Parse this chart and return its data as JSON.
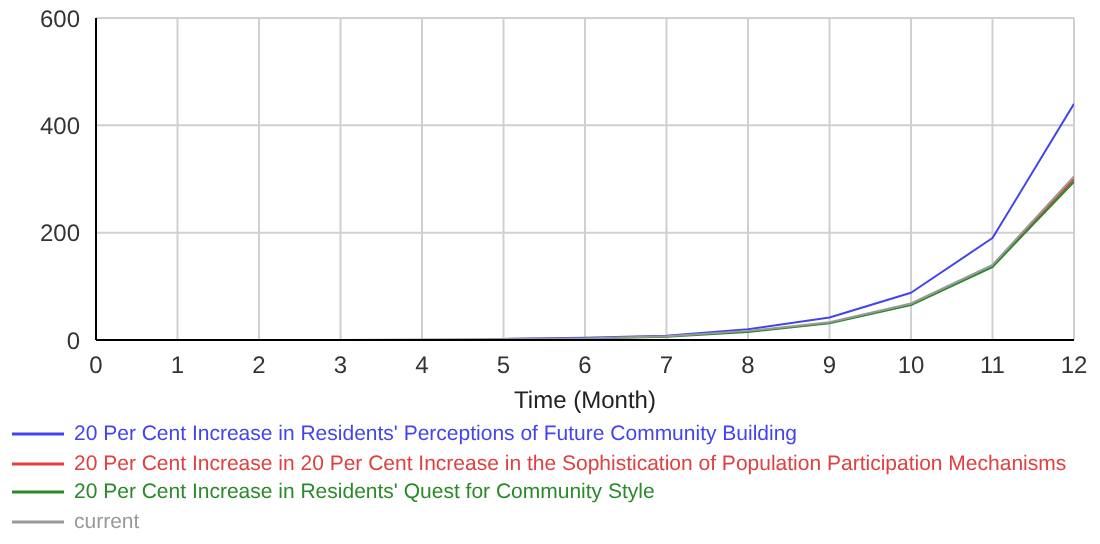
{
  "chart_data": {
    "type": "line",
    "xlabel": "Time (Month)",
    "x": [
      0,
      1,
      2,
      3,
      4,
      5,
      6,
      7,
      8,
      9,
      10,
      11,
      12
    ],
    "series": [
      {
        "name": "20 Per Cent Increase in Residents' Perceptions of Future Community Building",
        "color": "#4444ee",
        "values": [
          null,
          null,
          null,
          null,
          null,
          2,
          4,
          8,
          20,
          42,
          88,
          190,
          440
        ]
      },
      {
        "name": "20 Per Cent Increase in 20 Per Cent Increase in the Sophistication of Population Participation Mechanisms",
        "color": "#e04040",
        "values": [
          null,
          null,
          null,
          null,
          null,
          null,
          null,
          null,
          null,
          null,
          null,
          138,
          300
        ]
      },
      {
        "name": "20 Per Cent Increase in Residents' Quest for Community Style",
        "color": "#2a8a2a",
        "values": [
          null,
          null,
          null,
          null,
          null,
          null,
          3,
          6,
          15,
          31,
          65,
          136,
          295
        ]
      },
      {
        "name": "current",
        "color": "#999999",
        "values": [
          0,
          0,
          0,
          0,
          1,
          2,
          3,
          7,
          17,
          33,
          68,
          140,
          305
        ]
      }
    ],
    "xlim": [
      0,
      12
    ],
    "xticks": [
      0,
      1,
      2,
      3,
      4,
      5,
      6,
      7,
      8,
      9,
      10,
      11,
      12
    ],
    "ylim": [
      0,
      600
    ],
    "yticks": [
      0,
      200,
      400,
      600
    ],
    "grid": true,
    "legend": "bottom"
  }
}
